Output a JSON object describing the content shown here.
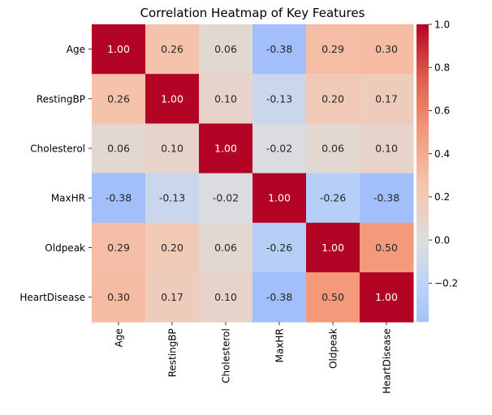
{
  "chart_data": {
    "type": "heatmap",
    "title": "Correlation Heatmap of Key Features",
    "xlabel": "",
    "ylabel": "",
    "labels": [
      "Age",
      "RestingBP",
      "Cholesterol",
      "MaxHR",
      "Oldpeak",
      "HeartDisease"
    ],
    "values": [
      [
        1.0,
        0.26,
        0.06,
        -0.38,
        0.29,
        0.3
      ],
      [
        0.26,
        1.0,
        0.1,
        -0.13,
        0.2,
        0.17
      ],
      [
        0.06,
        0.1,
        1.0,
        -0.02,
        0.06,
        0.1
      ],
      [
        -0.38,
        -0.13,
        -0.02,
        1.0,
        -0.26,
        -0.38
      ],
      [
        0.29,
        0.2,
        0.06,
        -0.26,
        1.0,
        0.5
      ],
      [
        0.3,
        0.17,
        0.1,
        -0.38,
        0.5,
        1.0
      ]
    ],
    "annotation_format": "0.00",
    "colormap": "coolwarm",
    "center": 0,
    "colorbar": {
      "range": [
        -0.38,
        1.0
      ],
      "ticks": [
        -0.2,
        0.0,
        0.2,
        0.4,
        0.6,
        0.8,
        1.0
      ],
      "tick_labels": [
        "−0.2",
        "0.0",
        "0.2",
        "0.4",
        "0.6",
        "0.8",
        "1.0"
      ],
      "placement": "right"
    },
    "grid": false
  }
}
